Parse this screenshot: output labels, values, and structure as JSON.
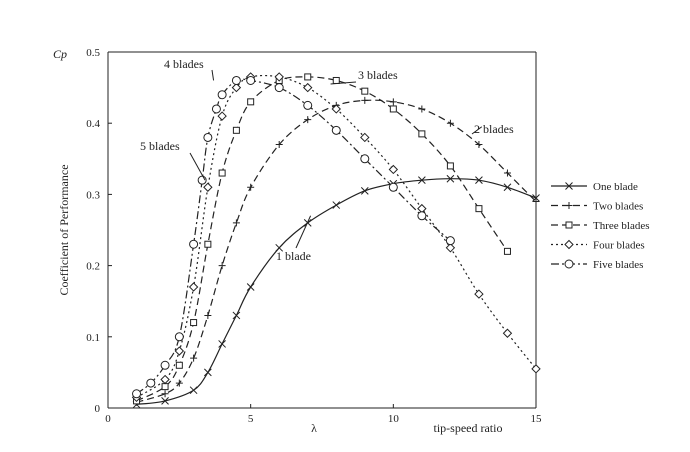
{
  "chart_data": {
    "type": "line",
    "title": "",
    "xlabel": "λ",
    "xlabel_extra": "tip-speed ratio",
    "ylabel": "Coefficient of Performance",
    "ylabel_symbol": "Cp",
    "xlim": [
      0,
      15
    ],
    "ylim": [
      0,
      0.5
    ],
    "xticks": [
      0,
      5,
      10,
      15
    ],
    "yticks": [
      0,
      0.1,
      0.2,
      0.3,
      0.4,
      0.5
    ],
    "grid": false,
    "legend_position": "right",
    "series": [
      {
        "name": "One blade",
        "style": "solid",
        "marker": "x",
        "x": [
          1.0,
          2.0,
          3.0,
          3.5,
          4.0,
          4.5,
          5.0,
          6.0,
          7.0,
          8.0,
          9.0,
          10.0,
          11.0,
          12.0,
          13.0,
          14.0,
          15.0
        ],
        "y": [
          0.005,
          0.01,
          0.025,
          0.05,
          0.09,
          0.13,
          0.17,
          0.225,
          0.26,
          0.285,
          0.305,
          0.315,
          0.32,
          0.322,
          0.32,
          0.31,
          0.295
        ]
      },
      {
        "name": "Two blades",
        "style": "dashed",
        "marker": "+",
        "x": [
          1.0,
          2.0,
          2.5,
          3.0,
          3.5,
          4.0,
          4.5,
          5.0,
          6.0,
          7.0,
          8.0,
          9.0,
          10.0,
          11.0,
          12.0,
          13.0,
          14.0,
          15.0
        ],
        "y": [
          0.008,
          0.02,
          0.035,
          0.07,
          0.13,
          0.2,
          0.26,
          0.31,
          0.37,
          0.405,
          0.425,
          0.432,
          0.43,
          0.42,
          0.4,
          0.37,
          0.33,
          0.29
        ]
      },
      {
        "name": "Three blades",
        "style": "dashed",
        "marker": "square",
        "x": [
          1.0,
          2.0,
          2.5,
          3.0,
          3.5,
          4.0,
          4.5,
          5.0,
          6.0,
          7.0,
          8.0,
          9.0,
          10.0,
          11.0,
          12.0,
          13.0,
          14.0
        ],
        "y": [
          0.01,
          0.03,
          0.06,
          0.12,
          0.23,
          0.33,
          0.39,
          0.43,
          0.46,
          0.465,
          0.46,
          0.445,
          0.42,
          0.385,
          0.34,
          0.28,
          0.22
        ]
      },
      {
        "name": "Four blades",
        "style": "dotted",
        "marker": "diamond",
        "x": [
          1.0,
          2.0,
          2.5,
          3.0,
          3.5,
          4.0,
          4.5,
          5.0,
          6.0,
          7.0,
          8.0,
          9.0,
          10.0,
          11.0,
          12.0,
          13.0,
          14.0,
          15.0
        ],
        "y": [
          0.015,
          0.04,
          0.08,
          0.17,
          0.31,
          0.41,
          0.45,
          0.465,
          0.465,
          0.45,
          0.42,
          0.38,
          0.335,
          0.28,
          0.225,
          0.16,
          0.105,
          0.055
        ]
      },
      {
        "name": "Five blades",
        "style": "dashdot",
        "marker": "circle",
        "x": [
          1.0,
          1.5,
          2.0,
          2.5,
          3.0,
          3.3,
          3.5,
          3.8,
          4.0,
          4.5,
          5.0,
          6.0,
          7.0,
          8.0,
          9.0,
          10.0,
          11.0,
          12.0
        ],
        "y": [
          0.02,
          0.035,
          0.06,
          0.1,
          0.23,
          0.32,
          0.38,
          0.42,
          0.44,
          0.46,
          0.46,
          0.45,
          0.425,
          0.39,
          0.35,
          0.31,
          0.27,
          0.235
        ]
      }
    ],
    "annotations": [
      {
        "text": "4 blades",
        "target_series": "Four blades"
      },
      {
        "text": "3 blades",
        "target_series": "Three blades"
      },
      {
        "text": "5 blades",
        "target_series": "Five blades"
      },
      {
        "text": "2 blades",
        "target_series": "Two blades"
      },
      {
        "text": "1 blade",
        "target_series": "One blade"
      }
    ]
  }
}
